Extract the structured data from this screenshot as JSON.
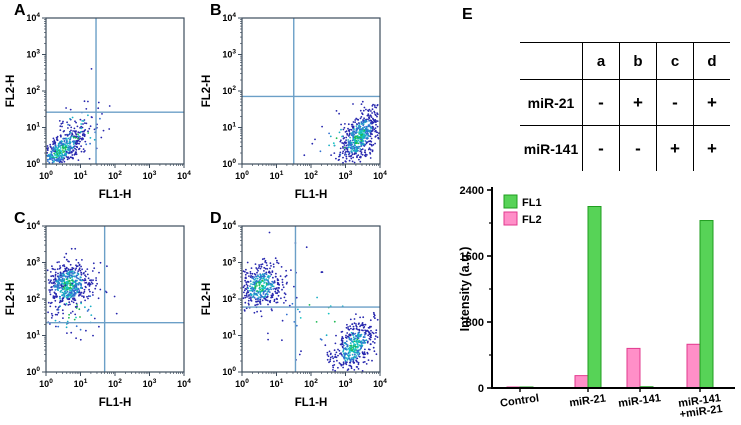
{
  "panels": [
    {
      "id": "A",
      "label": "A",
      "xlabel": "FL1-H",
      "ylabel": "FL2-H"
    },
    {
      "id": "B",
      "label": "B",
      "xlabel": "FL1-H",
      "ylabel": "FL2-H"
    },
    {
      "id": "C",
      "label": "C",
      "xlabel": "FL1-H",
      "ylabel": "FL2-H"
    },
    {
      "id": "D",
      "label": "D",
      "xlabel": "FL1-H",
      "ylabel": "FL2-H"
    }
  ],
  "table_panel": {
    "label": "E",
    "columns": [
      "a",
      "b",
      "c",
      "d"
    ],
    "rows": [
      {
        "name": "miR-21",
        "color": "#00a550",
        "values": [
          "-",
          "+",
          "-",
          "+"
        ]
      },
      {
        "name": "miR-141",
        "color": "#f46fb5",
        "values": [
          "-",
          "-",
          "+",
          "+"
        ]
      }
    ]
  },
  "chart_data": [
    {
      "type": "scatter",
      "panel": "A",
      "xlabel": "FL1-H",
      "ylabel": "FL2-H",
      "x_scale": "log10",
      "y_scale": "log10",
      "xlim_log": [
        0,
        4
      ],
      "ylim_log": [
        0,
        4
      ],
      "tick_base": "10",
      "tick_exponents": [
        0,
        1,
        2,
        3,
        4
      ],
      "quadrant_gate": {
        "x_log": 1.45,
        "y_log": 1.42
      },
      "seed": 7,
      "clusters": [
        {
          "cx": 0.4,
          "cy": 0.35,
          "sx": 0.38,
          "sy": 0.33,
          "rho": 0.7,
          "n": 550
        },
        {
          "cx": 1.0,
          "cy": 0.9,
          "sx": 0.5,
          "sy": 0.5,
          "rho": 0.3,
          "n": 60
        }
      ]
    },
    {
      "type": "scatter",
      "panel": "B",
      "xlabel": "FL1-H",
      "ylabel": "FL2-H",
      "x_scale": "log10",
      "y_scale": "log10",
      "xlim_log": [
        0,
        4
      ],
      "ylim_log": [
        0,
        4
      ],
      "tick_base": "10",
      "tick_exponents": [
        0,
        1,
        2,
        3,
        4
      ],
      "quadrant_gate": {
        "x_log": 1.5,
        "y_log": 1.85
      },
      "seed": 8,
      "clusters": [
        {
          "cx": 3.4,
          "cy": 0.75,
          "sx": 0.3,
          "sy": 0.38,
          "rho": 0.55,
          "n": 550
        },
        {
          "cx": 2.95,
          "cy": 0.6,
          "sx": 0.6,
          "sy": 0.4,
          "rho": 0.3,
          "n": 40
        }
      ]
    },
    {
      "type": "scatter",
      "panel": "C",
      "xlabel": "FL1-H",
      "ylabel": "FL2-H",
      "x_scale": "log10",
      "y_scale": "log10",
      "xlim_log": [
        0,
        4
      ],
      "ylim_log": [
        0,
        4
      ],
      "tick_base": "10",
      "tick_exponents": [
        0,
        1,
        2,
        3,
        4
      ],
      "quadrant_gate": {
        "x_log": 1.7,
        "y_log": 1.35
      },
      "seed": 9,
      "clusters": [
        {
          "cx": 0.65,
          "cy": 2.4,
          "sx": 0.35,
          "sy": 0.32,
          "rho": 0.15,
          "n": 550
        },
        {
          "cx": 0.8,
          "cy": 1.7,
          "sx": 0.55,
          "sy": 0.5,
          "rho": 0.1,
          "n": 70
        }
      ]
    },
    {
      "type": "scatter",
      "panel": "D",
      "xlabel": "FL1-H",
      "ylabel": "FL2-H",
      "x_scale": "log10",
      "y_scale": "log10",
      "xlim_log": [
        0,
        4
      ],
      "ylim_log": [
        0,
        4
      ],
      "tick_base": "10",
      "tick_exponents": [
        0,
        1,
        2,
        3,
        4
      ],
      "quadrant_gate": {
        "x_log": 1.55,
        "y_log": 1.78
      },
      "seed": 10,
      "clusters": [
        {
          "cx": 0.55,
          "cy": 2.35,
          "sx": 0.32,
          "sy": 0.3,
          "rho": 0.15,
          "n": 430
        },
        {
          "cx": 3.25,
          "cy": 0.7,
          "sx": 0.3,
          "sy": 0.36,
          "rho": 0.5,
          "n": 430
        },
        {
          "cx": 2.2,
          "cy": 1.5,
          "sx": 1.0,
          "sy": 0.8,
          "rho": 0.0,
          "n": 40
        }
      ]
    },
    {
      "type": "bar",
      "title": "",
      "xlabel": "",
      "ylabel": "Intensity (a.u.)",
      "ylim": [
        0,
        2400
      ],
      "yticks": [
        0,
        800,
        1600,
        2400
      ],
      "grid": false,
      "legend_position": "top-left",
      "categories": [
        "Control",
        "miR-21",
        "miR-141",
        "miR-141\n+miR-21"
      ],
      "series": [
        {
          "name": "FL2",
          "fill": "#ff8fc8",
          "edge": "#e23a8e",
          "values": [
            12,
            150,
            480,
            530
          ]
        },
        {
          "name": "FL1",
          "fill": "#57d357",
          "edge": "#1f9e1f",
          "values": [
            12,
            2200,
            15,
            2030
          ]
        }
      ],
      "legend": [
        {
          "name": "FL1",
          "fill": "#57d357",
          "edge": "#1f9e1f"
        },
        {
          "name": "FL2",
          "fill": "#ff8fc8",
          "edge": "#e23a8e"
        }
      ]
    }
  ]
}
